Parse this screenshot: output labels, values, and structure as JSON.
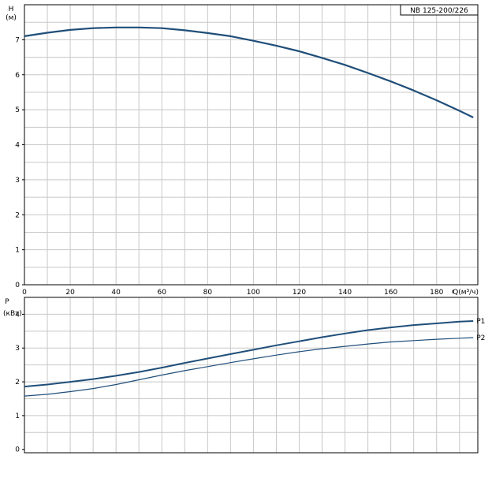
{
  "chart_data": [
    {
      "type": "line",
      "legend_label": "NB 125-200/226",
      "ylabel_sym": "H",
      "ylabel_unit": "(м)",
      "xlabel": "Q(м³/ч)",
      "xlim": [
        0,
        198
      ],
      "ylim": [
        0,
        8
      ],
      "xticks": [
        0,
        20,
        40,
        60,
        80,
        100,
        120,
        140,
        160,
        180
      ],
      "yticks": [
        0,
        1,
        2,
        3,
        4,
        5,
        6,
        7
      ],
      "grid": true,
      "series": [
        {
          "x": [
            0,
            10,
            20,
            30,
            40,
            50,
            60,
            70,
            80,
            90,
            100,
            110,
            120,
            130,
            140,
            150,
            160,
            170,
            180,
            190,
            196
          ],
          "y": [
            7.1,
            7.2,
            7.28,
            7.33,
            7.35,
            7.35,
            7.33,
            7.27,
            7.19,
            7.1,
            6.97,
            6.83,
            6.67,
            6.48,
            6.28,
            6.05,
            5.81,
            5.55,
            5.27,
            4.97,
            4.78
          ]
        }
      ]
    },
    {
      "type": "line",
      "ylabel_sym": "P",
      "ylabel_unit": "(кВт)",
      "xlim": [
        0,
        198
      ],
      "ylim": [
        -0.1,
        4.5
      ],
      "yticks": [
        0,
        1,
        2,
        3,
        4
      ],
      "grid": true,
      "series": [
        {
          "name": "P1",
          "x": [
            0,
            10,
            20,
            30,
            40,
            50,
            60,
            70,
            80,
            90,
            100,
            110,
            120,
            130,
            140,
            150,
            160,
            170,
            180,
            190,
            196
          ],
          "y": [
            1.86,
            1.92,
            2.0,
            2.08,
            2.18,
            2.29,
            2.42,
            2.56,
            2.69,
            2.82,
            2.95,
            3.08,
            3.2,
            3.32,
            3.43,
            3.53,
            3.61,
            3.68,
            3.73,
            3.78,
            3.8
          ]
        },
        {
          "name": "P2",
          "x": [
            0,
            10,
            20,
            30,
            40,
            50,
            60,
            70,
            80,
            90,
            100,
            110,
            120,
            130,
            140,
            150,
            160,
            170,
            180,
            190,
            196
          ],
          "y": [
            1.58,
            1.63,
            1.71,
            1.8,
            1.92,
            2.06,
            2.2,
            2.33,
            2.45,
            2.57,
            2.68,
            2.79,
            2.89,
            2.98,
            3.05,
            3.12,
            3.18,
            3.22,
            3.26,
            3.29,
            3.31
          ]
        }
      ]
    }
  ]
}
